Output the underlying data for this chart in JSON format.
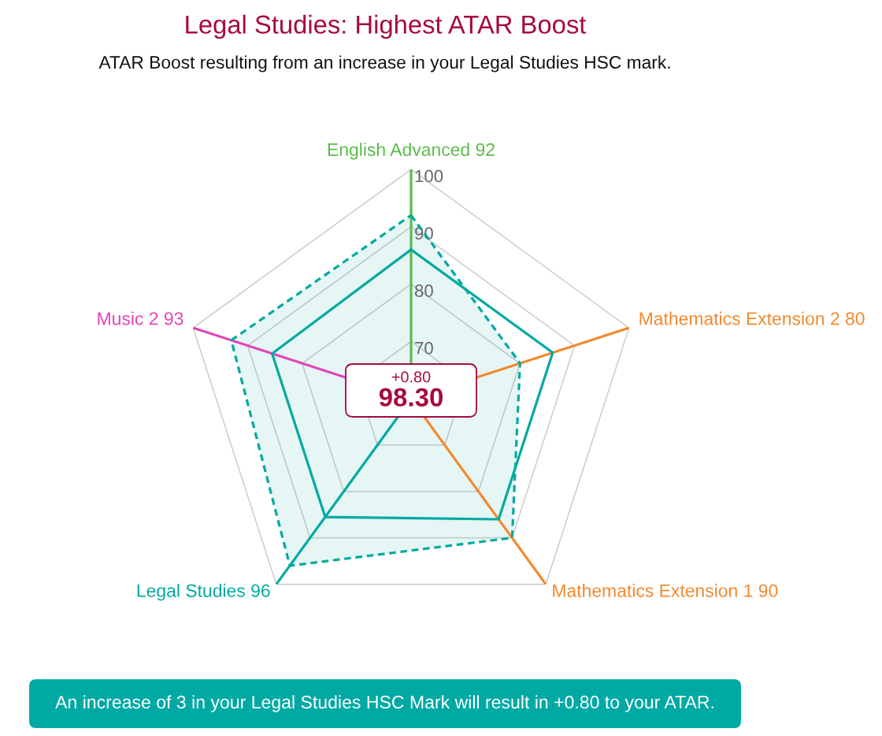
{
  "chart_data": {
    "type": "radar",
    "title": "Legal Studies: Highest ATAR Boost",
    "subtitle": "ATAR Boost resulting from an increase in your Legal Studies HSC mark.",
    "categories": [
      "English Advanced 92",
      "Mathematics Extension 2 80",
      "Mathematics Extension 1 90",
      "Legal Studies 96",
      "Music 2 93"
    ],
    "colors": [
      "#5cbb4c",
      "#f4882c",
      "#f4882c",
      "#00a9a0",
      "#e244b8"
    ],
    "series": [
      {
        "color": "#00a9a0",
        "line_style": "solid",
        "values": [
          86,
          86,
          86,
          85.5,
          85.5
        ]
      },
      {
        "color": "#00a9a0",
        "line_style": "dashed",
        "values": [
          92,
          80,
          90,
          96,
          93
        ]
      }
    ],
    "ylim": [
      60,
      100
    ],
    "yticks": [
      70,
      80,
      90,
      100
    ],
    "grid": true,
    "annotations": [
      "+0.80",
      "98.30",
      "An increase of 3 in your Legal Studies HSC Mark will result in +0.80 to your ATAR."
    ]
  }
}
